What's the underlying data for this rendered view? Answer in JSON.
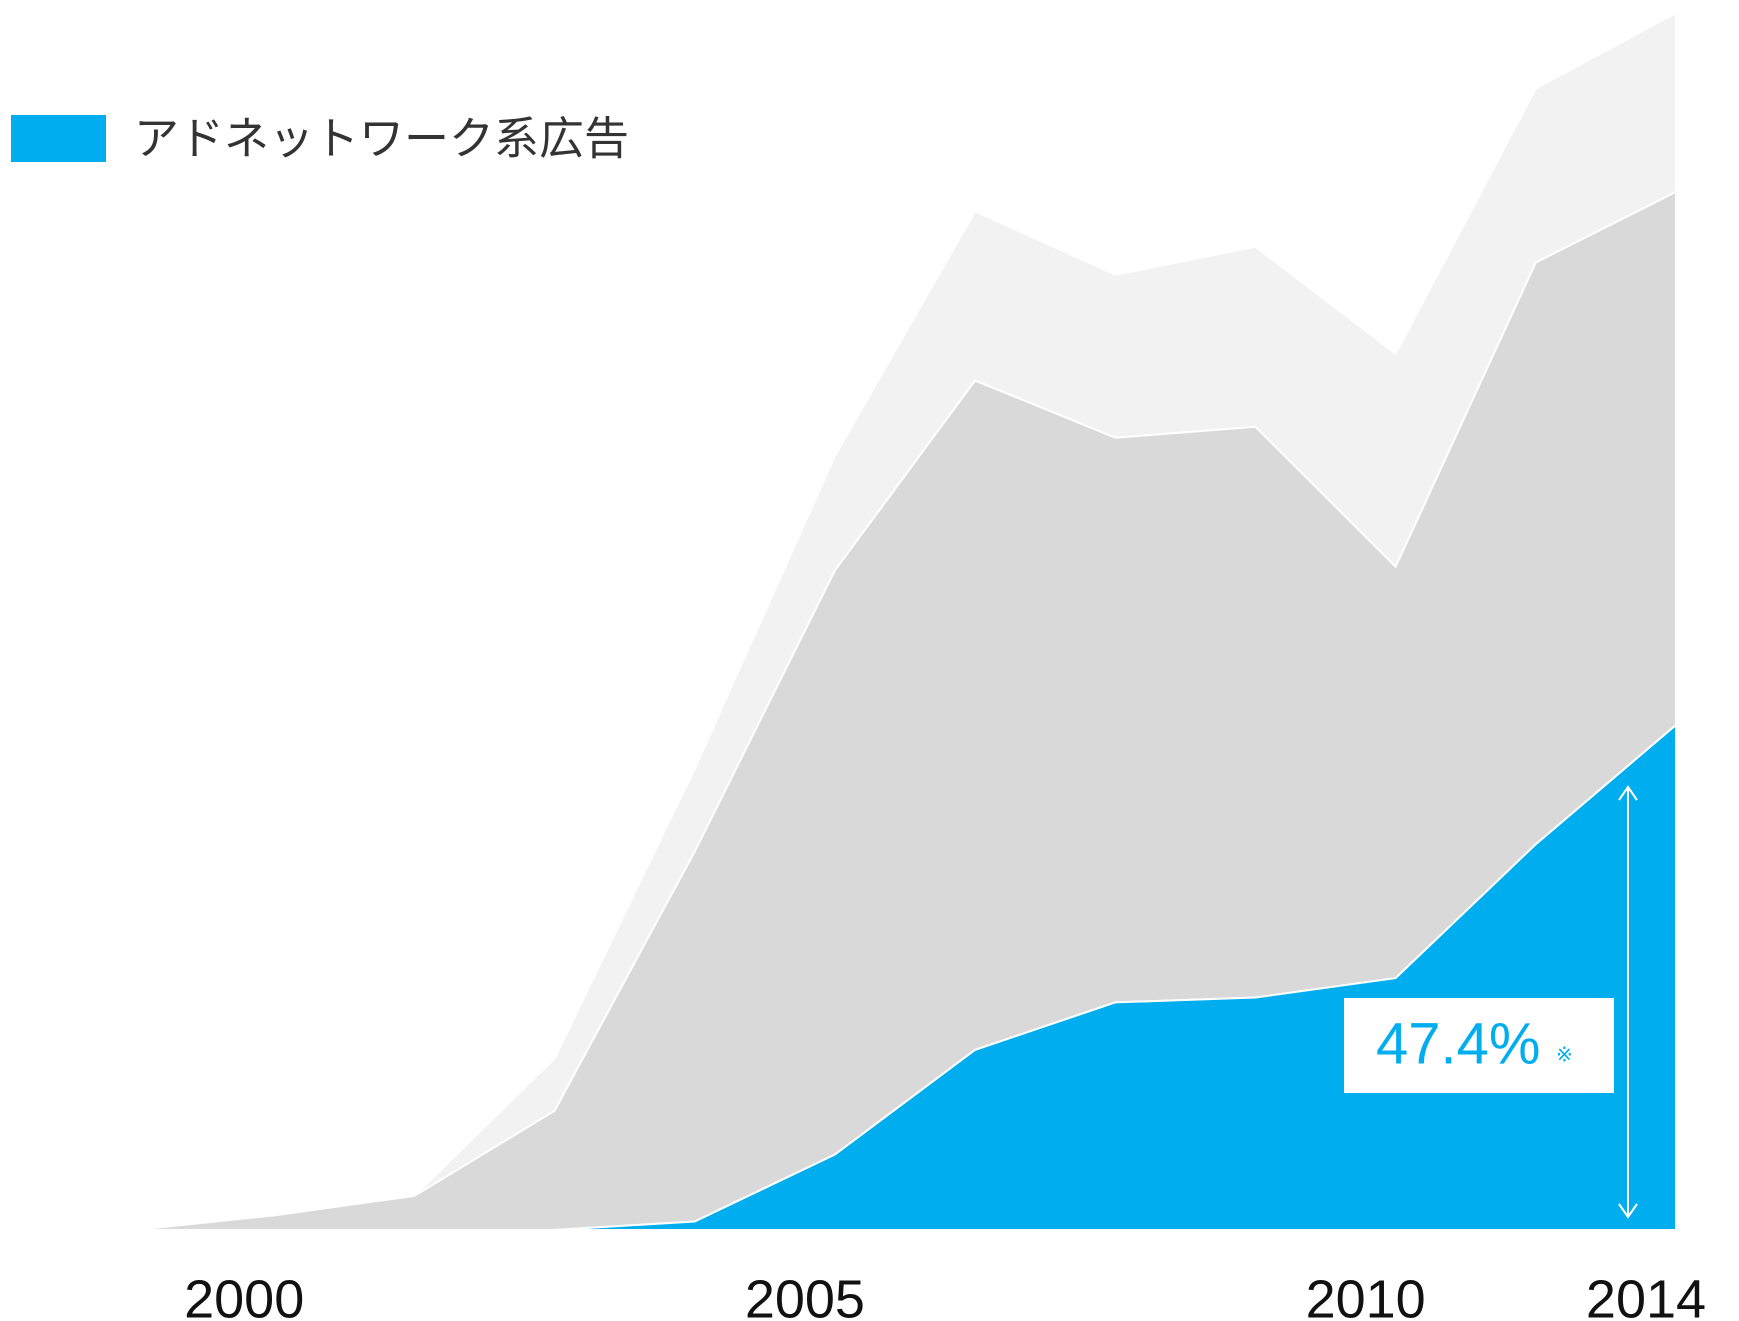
{
  "chart_data": {
    "type": "stacked_area",
    "categories": [
      null,
      "2000",
      null,
      null,
      null,
      "2005",
      null,
      null,
      null,
      "2010",
      null,
      "2014"
    ],
    "series": [
      {
        "name": "アドネットワーク系広告",
        "color": "#00aeef",
        "values": [
          0,
          0,
          0,
          0,
          0.7,
          6.2,
          14.8,
          18.7,
          19.1,
          20.7,
          31.7,
          41.5
        ]
      },
      {
        "color": "#d9d9d9",
        "values": [
          0,
          1.2,
          2.8,
          9.8,
          30.4,
          48.0,
          55.0,
          46.4,
          46.9,
          33.8,
          47.8,
          43.8
        ]
      },
      {
        "color": "#f2f2f2",
        "values": [
          0,
          0,
          0,
          4.3,
          6.8,
          9.4,
          13.9,
          13.4,
          14.8,
          17.5,
          14.3,
          14.7
        ]
      }
    ],
    "ylim": [
      0,
      100
    ],
    "annotation": {
      "text": "47.4%",
      "note": "※"
    },
    "legend": "top-left"
  }
}
